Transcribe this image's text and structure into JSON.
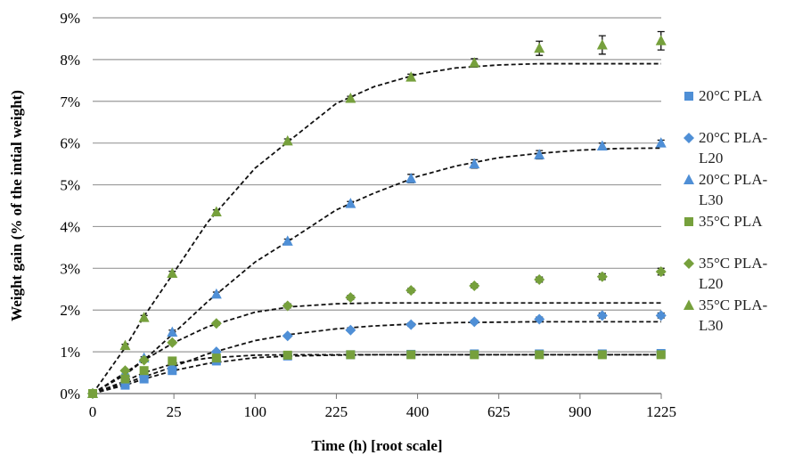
{
  "chart_data": {
    "type": "scatter",
    "y_label": "Weight gain (% of the intial weight)",
    "x_label": "Time (h) [root scale]",
    "xscale": "sqrt",
    "xlim": [
      0,
      1225
    ],
    "xticks": [
      0,
      25,
      100,
      225,
      400,
      625,
      900,
      1225
    ],
    "ylim": [
      0,
      9
    ],
    "yticks": [
      {
        "value": 0,
        "label": "0%"
      },
      {
        "value": 1,
        "label": "1%"
      },
      {
        "value": 2,
        "label": "2%"
      },
      {
        "value": 3,
        "label": "3%"
      },
      {
        "value": 4,
        "label": "4%"
      },
      {
        "value": 5,
        "label": "5%"
      },
      {
        "value": 6,
        "label": "6%"
      },
      {
        "value": 7,
        "label": "7%"
      },
      {
        "value": 8,
        "label": "8%"
      },
      {
        "value": 9,
        "label": "9%"
      }
    ],
    "grid": true,
    "legend": "right",
    "x": [
      0,
      4,
      10,
      24,
      58,
      144,
      252,
      384,
      552,
      756,
      984,
      1224
    ],
    "fit_x": [
      0,
      4,
      10,
      25,
      50,
      100,
      150,
      225,
      300,
      400,
      500,
      625,
      750,
      900,
      1050,
      1225
    ],
    "series": [
      {
        "name": "20°C PLA",
        "color": "#4f8fd6",
        "marker": "square",
        "values": [
          0,
          0.2,
          0.35,
          0.55,
          0.78,
          0.9,
          0.93,
          0.94,
          0.95,
          0.95,
          0.95,
          0.96
        ],
        "errors": [
          0,
          0.02,
          0.02,
          0.03,
          0.03,
          0.03,
          0.03,
          0.03,
          0.03,
          0.03,
          0.03,
          0.03
        ],
        "fit": [
          0,
          0.2,
          0.35,
          0.55,
          0.72,
          0.86,
          0.9,
          0.92,
          0.93,
          0.93,
          0.93,
          0.93,
          0.93,
          0.93,
          0.93,
          0.93
        ]
      },
      {
        "name": "20°C PLA-L20",
        "color": "#4f8fd6",
        "marker": "diamond",
        "values": [
          0,
          0.25,
          0.4,
          0.6,
          1.0,
          1.38,
          1.52,
          1.65,
          1.72,
          1.78,
          1.87,
          1.87
        ],
        "errors": [
          0,
          0.02,
          0.02,
          0.03,
          0.03,
          0.03,
          0.03,
          0.04,
          0.04,
          0.05,
          0.06,
          0.06
        ],
        "fit": [
          0,
          0.25,
          0.4,
          0.65,
          0.95,
          1.27,
          1.42,
          1.55,
          1.62,
          1.67,
          1.7,
          1.71,
          1.72,
          1.72,
          1.72,
          1.72
        ]
      },
      {
        "name": "20°C PLA-L30",
        "color": "#4f8fd6",
        "marker": "triangle",
        "values": [
          0,
          0.5,
          0.85,
          1.47,
          2.38,
          3.65,
          4.55,
          5.15,
          5.5,
          5.72,
          5.93,
          6.0
        ],
        "errors": [
          0,
          0.03,
          0.03,
          0.05,
          0.05,
          0.05,
          0.05,
          0.1,
          0.1,
          0.1,
          0.07,
          0.07
        ],
        "fit": [
          0,
          0.45,
          0.8,
          1.45,
          2.2,
          3.15,
          3.7,
          4.4,
          4.8,
          5.2,
          5.45,
          5.65,
          5.75,
          5.83,
          5.87,
          5.88
        ]
      },
      {
        "name": "35°C PLA",
        "color": "#76a03c",
        "marker": "square",
        "values": [
          0,
          0.35,
          0.55,
          0.78,
          0.85,
          0.92,
          0.93,
          0.93,
          0.93,
          0.93,
          0.93,
          0.93
        ],
        "errors": [
          0,
          0.02,
          0.02,
          0.03,
          0.03,
          0.03,
          0.03,
          0.03,
          0.03,
          0.03,
          0.03,
          0.03
        ],
        "fit": [
          0,
          0.3,
          0.5,
          0.72,
          0.85,
          0.92,
          0.93,
          0.93,
          0.93,
          0.93,
          0.93,
          0.93,
          0.93,
          0.93,
          0.93,
          0.93
        ]
      },
      {
        "name": "35°C PLA-L20",
        "color": "#76a03c",
        "marker": "diamond",
        "values": [
          0,
          0.55,
          0.8,
          1.22,
          1.68,
          2.1,
          2.3,
          2.47,
          2.58,
          2.73,
          2.8,
          2.92
        ],
        "errors": [
          0,
          0.03,
          0.03,
          0.04,
          0.04,
          0.05,
          0.05,
          0.05,
          0.05,
          0.06,
          0.07,
          0.08
        ],
        "fit": [
          0,
          0.5,
          0.8,
          1.22,
          1.6,
          1.95,
          2.08,
          2.15,
          2.17,
          2.17,
          2.17,
          2.17,
          2.17,
          2.17,
          2.17,
          2.17
        ]
      },
      {
        "name": "35°C PLA-L30",
        "color": "#76a03c",
        "marker": "triangle",
        "values": [
          0,
          1.15,
          1.82,
          2.88,
          4.35,
          6.05,
          7.07,
          7.58,
          7.92,
          8.27,
          8.35,
          8.45
        ],
        "errors": [
          0,
          0.03,
          0.05,
          0.05,
          0.05,
          0.05,
          0.05,
          0.07,
          0.1,
          0.17,
          0.22,
          0.22
        ],
        "fit": [
          0,
          1.1,
          1.85,
          2.9,
          4.1,
          5.4,
          6.1,
          6.95,
          7.35,
          7.65,
          7.8,
          7.87,
          7.9,
          7.9,
          7.9,
          7.9
        ]
      }
    ]
  }
}
